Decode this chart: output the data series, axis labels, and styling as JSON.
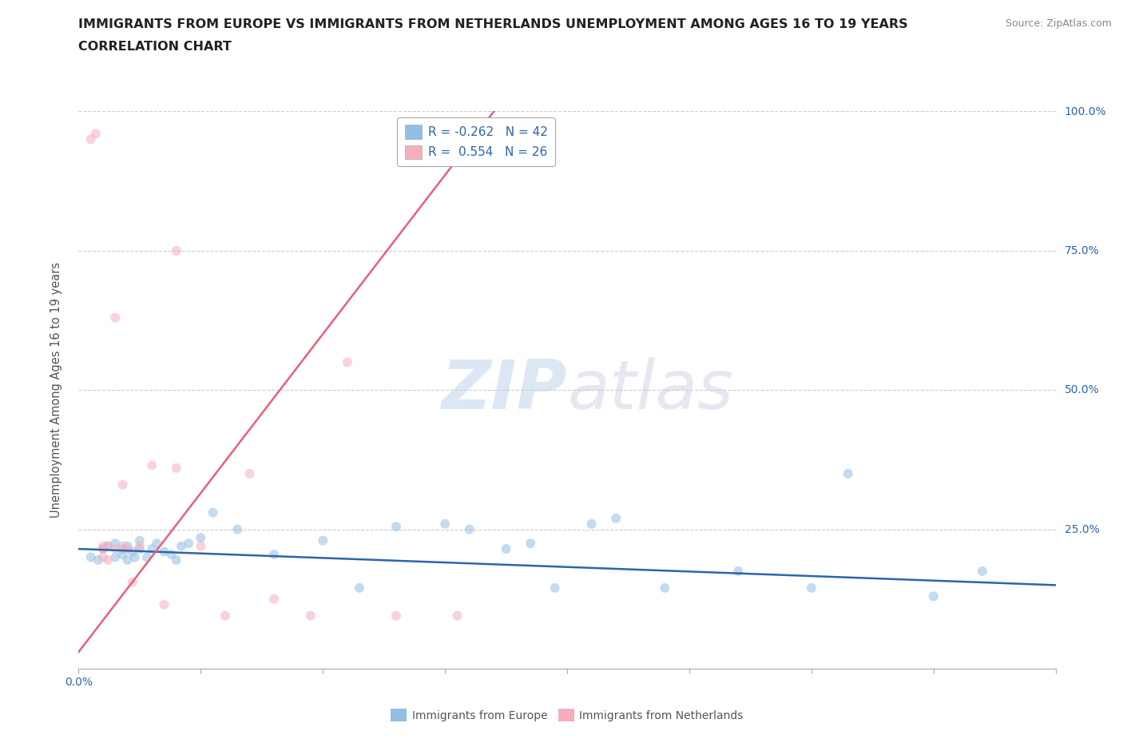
{
  "title_line1": "IMMIGRANTS FROM EUROPE VS IMMIGRANTS FROM NETHERLANDS UNEMPLOYMENT AMONG AGES 16 TO 19 YEARS",
  "title_line2": "CORRELATION CHART",
  "source_text": "Source: ZipAtlas.com",
  "ylabel": "Unemployment Among Ages 16 to 19 years",
  "watermark_zip": "ZIP",
  "watermark_atlas": "atlas",
  "xlim": [
    0.0,
    0.4
  ],
  "ylim": [
    0.0,
    1.0
  ],
  "xtick_positions": [
    0.0,
    0.05,
    0.1,
    0.15,
    0.2,
    0.25,
    0.3,
    0.35,
    0.4
  ],
  "xtick_labels_show": {
    "0.0": "0.0%"
  },
  "ytick_positions": [
    0.0,
    0.25,
    0.5,
    0.75,
    1.0
  ],
  "ytick_labels_right": [
    "",
    "25.0%",
    "50.0%",
    "75.0%",
    "100.0%"
  ],
  "grid_color": "#cccccc",
  "background_color": "#ffffff",
  "blue_color": "#92BFE3",
  "pink_color": "#F5AEBE",
  "blue_line_color": "#2b65ae",
  "pink_line_color": "#e8607a",
  "legend_r_blue": "-0.262",
  "legend_n_blue": "42",
  "legend_r_pink": "0.554",
  "legend_n_pink": "26",
  "legend_label_blue": "Immigrants from Europe",
  "legend_label_pink": "Immigrants from Netherlands",
  "blue_scatter_x": [
    0.005,
    0.008,
    0.01,
    0.012,
    0.015,
    0.015,
    0.018,
    0.018,
    0.02,
    0.02,
    0.022,
    0.023,
    0.025,
    0.025,
    0.028,
    0.03,
    0.032,
    0.035,
    0.038,
    0.04,
    0.042,
    0.045,
    0.05,
    0.055,
    0.065,
    0.08,
    0.1,
    0.115,
    0.13,
    0.15,
    0.16,
    0.175,
    0.185,
    0.195,
    0.21,
    0.22,
    0.24,
    0.27,
    0.3,
    0.315,
    0.35,
    0.37
  ],
  "blue_scatter_y": [
    0.2,
    0.195,
    0.215,
    0.22,
    0.225,
    0.2,
    0.205,
    0.215,
    0.22,
    0.195,
    0.21,
    0.2,
    0.23,
    0.215,
    0.2,
    0.215,
    0.225,
    0.21,
    0.205,
    0.195,
    0.22,
    0.225,
    0.235,
    0.28,
    0.25,
    0.205,
    0.23,
    0.145,
    0.255,
    0.26,
    0.25,
    0.215,
    0.225,
    0.145,
    0.26,
    0.27,
    0.145,
    0.175,
    0.145,
    0.35,
    0.13,
    0.175
  ],
  "pink_scatter_x": [
    0.005,
    0.007,
    0.01,
    0.01,
    0.01,
    0.012,
    0.012,
    0.015,
    0.015,
    0.018,
    0.018,
    0.02,
    0.022,
    0.025,
    0.03,
    0.035,
    0.04,
    0.04,
    0.05,
    0.06,
    0.07,
    0.08,
    0.095,
    0.11,
    0.13,
    0.155
  ],
  "pink_scatter_y": [
    0.95,
    0.96,
    0.22,
    0.215,
    0.2,
    0.22,
    0.195,
    0.63,
    0.215,
    0.33,
    0.22,
    0.215,
    0.155,
    0.22,
    0.365,
    0.115,
    0.36,
    0.75,
    0.22,
    0.095,
    0.35,
    0.125,
    0.095,
    0.55,
    0.095,
    0.095
  ],
  "blue_line_x": [
    0.0,
    0.4
  ],
  "blue_line_y": [
    0.215,
    0.15
  ],
  "pink_line_x": [
    0.0,
    0.17
  ],
  "pink_line_y": [
    0.03,
    1.0
  ],
  "title_fontsize": 11.5,
  "ylabel_fontsize": 10.5,
  "tick_fontsize": 10,
  "scatter_size": 75,
  "scatter_alpha": 0.55,
  "line_width": 1.8
}
